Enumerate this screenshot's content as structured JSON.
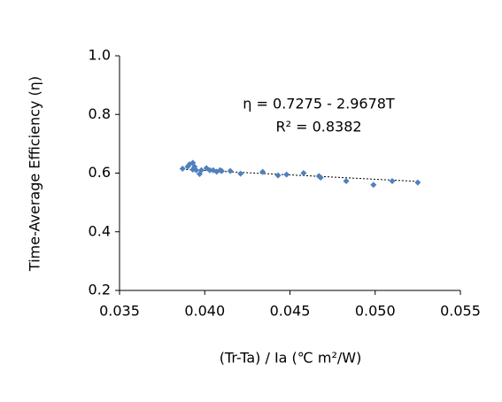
{
  "chart_data": {
    "type": "scatter",
    "x_label": "(Tr-Ta) / Ia (℃ m²/W)",
    "y_label": "Time-Average Efficiency (η)",
    "annotations": [
      "η = 0.7275 - 2.9678T",
      "R² = 0.8382"
    ],
    "trendline": {
      "intercept": 0.7275,
      "slope": -2.9678
    },
    "series": [
      {
        "color": "#4f81bd",
        "x": [
          0.0387,
          0.039,
          0.0391,
          0.0393,
          0.0393,
          0.0394,
          0.0395,
          0.0397,
          0.0398,
          0.0401,
          0.0403,
          0.0405,
          0.0407,
          0.0409,
          0.041,
          0.0415,
          0.0421,
          0.0434,
          0.0443,
          0.0448,
          0.0458,
          0.0467,
          0.0468,
          0.0483,
          0.0499,
          0.051,
          0.0525
        ],
        "values": [
          0.615,
          0.622,
          0.63,
          0.635,
          0.612,
          0.622,
          0.61,
          0.597,
          0.61,
          0.617,
          0.61,
          0.61,
          0.605,
          0.61,
          0.607,
          0.607,
          0.598,
          0.604,
          0.592,
          0.595,
          0.6,
          0.59,
          0.585,
          0.573,
          0.56,
          0.573,
          0.568
        ]
      }
    ],
    "xlim": [
      0.035,
      0.055
    ],
    "xticks": [
      0.035,
      {
        "value": 0.04,
        "label": "0.040"
      },
      0.045,
      {
        "value": 0.05,
        "label": "0.050"
      },
      0.055
    ],
    "ylim": [
      0.2,
      1.0
    ],
    "yticks": [
      0.2,
      0.4,
      0.6,
      0.8,
      {
        "value": 1.0,
        "label": "1.0"
      }
    ],
    "grid": false
  }
}
